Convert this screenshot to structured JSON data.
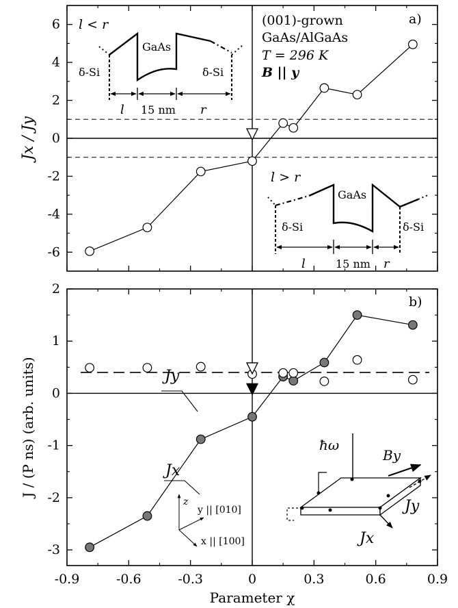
{
  "x_axis": {
    "label": "Parameter χ",
    "range": [
      -0.9,
      0.9
    ],
    "ticks": [
      -0.9,
      -0.6,
      -0.3,
      0,
      0.3,
      0.6,
      0.9
    ],
    "tick_labels": [
      "-0.9",
      "-0.6",
      "-0.3",
      "0",
      "0.3",
      "0.6",
      "0.9"
    ]
  },
  "chart_data": [
    {
      "type": "scatter",
      "panel_label": "a)",
      "ylabel": "Jx / Jy",
      "ylim": [
        -7,
        7
      ],
      "yticks": [
        -6,
        -4,
        -2,
        0,
        2,
        4,
        6
      ],
      "ytick_labels": [
        "-6",
        "-4",
        "-2",
        "0",
        "2",
        "4",
        "6"
      ],
      "reference_lines": [
        1,
        -1
      ],
      "series": [
        {
          "marker": "open-circle",
          "x": [
            -0.79,
            -0.51,
            -0.25,
            0.0,
            0.15,
            0.2,
            0.35,
            0.51,
            0.78
          ],
          "y": [
            -5.95,
            -4.7,
            -1.75,
            -1.2,
            0.8,
            0.55,
            2.65,
            2.3,
            4.95
          ]
        }
      ],
      "arrow_marker": {
        "x": 0.0,
        "style": "open"
      },
      "annotations": {
        "sample_info": [
          "(001)-grown",
          "GaAs/AlGaAs",
          "T = 296 K",
          "B || y"
        ],
        "inset_left": {
          "condition": "l < r",
          "well_label": "GaAs",
          "doping_left": "δ-Si",
          "doping_right": "δ-Si",
          "dim_left": "l",
          "dim_mid": "15 nm",
          "dim_right": "r"
        },
        "inset_right": {
          "condition": "l > r",
          "well_label": "GaAs",
          "doping_left": "δ-Si",
          "doping_right": "δ-Si",
          "dim_left": "l",
          "dim_mid": "15 nm",
          "dim_right": "r"
        }
      }
    },
    {
      "type": "scatter",
      "panel_label": "b)",
      "ylabel": "J / (P ns)  (arb. units)",
      "ylim": [
        -3.3,
        2
      ],
      "yticks": [
        -3,
        -2,
        -1,
        0,
        1,
        2
      ],
      "ytick_labels": [
        "-3",
        "-2",
        "-1",
        "0",
        "1",
        "2"
      ],
      "series": [
        {
          "name": "Jx",
          "marker": "filled-circle",
          "connected": true,
          "x": [
            -0.79,
            -0.51,
            -0.25,
            0.0,
            0.15,
            0.2,
            0.35,
            0.51,
            0.78
          ],
          "y": [
            -2.95,
            -2.35,
            -0.88,
            -0.45,
            0.32,
            0.24,
            0.59,
            1.5,
            1.31
          ]
        },
        {
          "name": "Jy",
          "marker": "open-circle",
          "connected": false,
          "x": [
            -0.79,
            -0.51,
            -0.25,
            0.0,
            0.15,
            0.2,
            0.35,
            0.51,
            0.78
          ],
          "y": [
            0.49,
            0.49,
            0.51,
            0.37,
            0.39,
            0.39,
            0.23,
            0.64,
            0.26
          ]
        }
      ],
      "dashed_level": 0.4,
      "arrow_markers": [
        {
          "x": 0.0,
          "style": "open"
        },
        {
          "x": 0.0,
          "style": "filled"
        }
      ],
      "annotations": {
        "hbar_omega": "ħω",
        "field_label": "By",
        "current_y": "Jy",
        "current_x": "Jx",
        "axes_z": "z",
        "axes_y": "y || [010]",
        "axes_x": "x || [100]"
      }
    }
  ]
}
